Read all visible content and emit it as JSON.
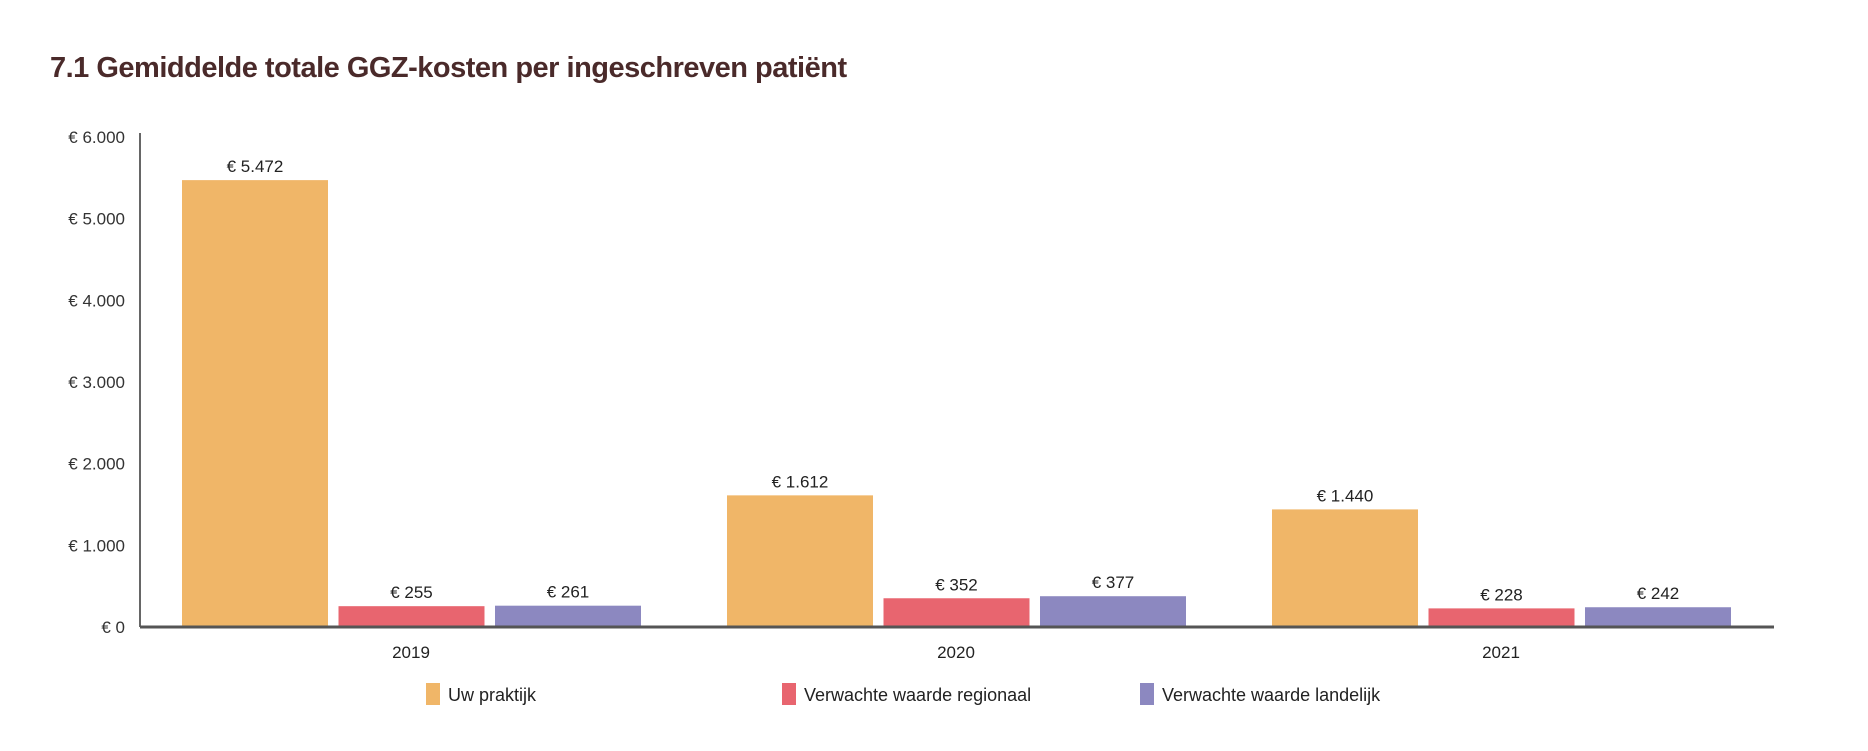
{
  "chart_data": {
    "type": "bar",
    "title": "7.1 Gemiddelde totale GGZ-kosten per ingeschreven patiënt",
    "xlabel": "",
    "ylabel": "",
    "categories": [
      "2019",
      "2020",
      "2021"
    ],
    "ylim": [
      0,
      6000
    ],
    "yticks": [
      0,
      1000,
      2000,
      3000,
      4000,
      5000,
      6000
    ],
    "ytick_labels": [
      "€ 0",
      "€ 1.000",
      "€ 2.000",
      "€ 3.000",
      "€ 4.000",
      "€ 5.000",
      "€ 6.000"
    ],
    "grid": false,
    "legend_position": "bottom",
    "series": [
      {
        "name": "Uw praktijk",
        "color": "#F0B668",
        "values": [
          5472,
          1612,
          1440
        ],
        "labels": [
          "€ 5.472",
          "€ 1.612",
          "€ 1.440"
        ]
      },
      {
        "name": "Verwachte waarde regionaal",
        "color": "#E8656F",
        "values": [
          255,
          352,
          228
        ],
        "labels": [
          "€ 255",
          "€ 352",
          "€ 228"
        ]
      },
      {
        "name": "Verwachte waarde landelijk",
        "color": "#8C88C0",
        "values": [
          261,
          377,
          242
        ],
        "labels": [
          "€ 261",
          "€ 377",
          "€ 242"
        ]
      }
    ]
  }
}
